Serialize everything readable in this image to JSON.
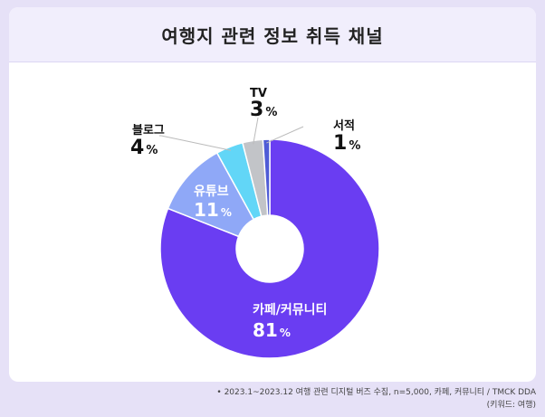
{
  "title": "여행지 관련 정보 취득 채널",
  "chart_data": {
    "type": "pie",
    "title": "여행지 관련 정보 취득 채널",
    "unit": "%",
    "slices": [
      {
        "label": "카페/커뮤니티",
        "value": 81,
        "color": "#6a3df2"
      },
      {
        "label": "유튜브",
        "value": 11,
        "color": "#8fa8f7"
      },
      {
        "label": "블로그",
        "value": 4,
        "color": "#62d6f7"
      },
      {
        "label": "TV",
        "value": 3,
        "color": "#c2c4c8"
      },
      {
        "label": "서적",
        "value": 1,
        "color": "#4f5cd6"
      }
    ]
  },
  "footnote": {
    "line1": "• 2023.1~2023.12 여행 관련 디지털 버즈 수집, n=5,000, 카페, 커뮤니티 / TMCK DDA",
    "line2": "(키워드: 여행)"
  }
}
